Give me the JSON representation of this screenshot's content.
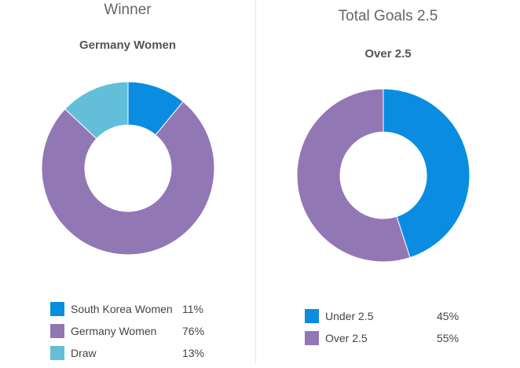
{
  "chart_data": [
    {
      "type": "pie",
      "donut": true,
      "title": "Winner",
      "subtitle": "Germany Women",
      "series": [
        {
          "name": "South Korea Women",
          "value": 11,
          "label": "11%",
          "color": "#0a8de0"
        },
        {
          "name": "Germany Women",
          "value": 76,
          "label": "76%",
          "color": "#9277b5"
        },
        {
          "name": "Draw",
          "value": 13,
          "label": "13%",
          "color": "#63bfd9"
        }
      ],
      "legend_position": "bottom"
    },
    {
      "type": "pie",
      "donut": true,
      "title": "Total Goals 2.5",
      "subtitle": "Over 2.5",
      "series": [
        {
          "name": "Under 2.5",
          "value": 45,
          "label": "45%",
          "color": "#0a8de0"
        },
        {
          "name": "Over 2.5",
          "value": 55,
          "label": "55%",
          "color": "#9277b5"
        }
      ],
      "legend_position": "bottom"
    }
  ]
}
